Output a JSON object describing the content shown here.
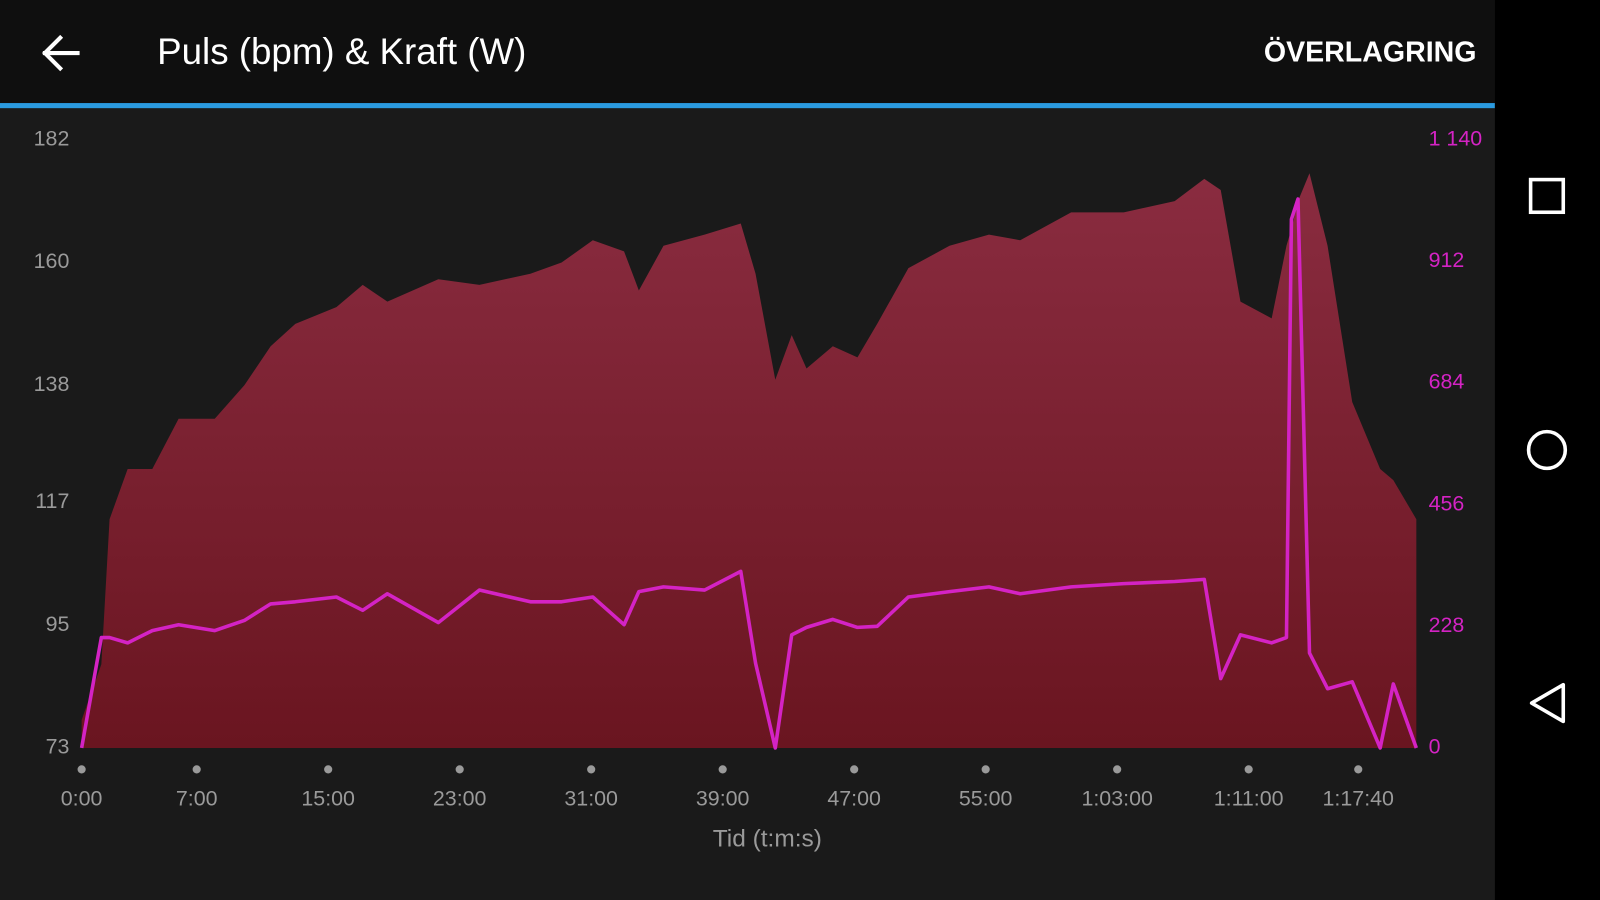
{
  "header": {
    "action": "ÖVERLAGRING"
  },
  "chart_data": {
    "type": "combo",
    "title": "Puls (bpm) & Kraft (W)",
    "x_label": "Tid (t:m:s)",
    "x": [
      0,
      1.2,
      1.7,
      2.8,
      4.3,
      5.9,
      8.1,
      9.9,
      11.5,
      13.0,
      15.5,
      17.1,
      18.6,
      21.7,
      24.2,
      27.3,
      29.2,
      31.1,
      33.0,
      33.9,
      35.4,
      37.9,
      40.1,
      41.0,
      42.2,
      43.2,
      44.1,
      45.7,
      47.2,
      48.4,
      50.3,
      52.8,
      55.2,
      57.1,
      60.2,
      63.4,
      66.5,
      68.3,
      69.3,
      70.5,
      72.4,
      73.3,
      73.6,
      74.0,
      74.7,
      75.8,
      77.3,
      79.0,
      79.8,
      81.2
    ],
    "series": [
      {
        "kind": "area",
        "color": "#8a2c40",
        "color_bottom": "#6a1520",
        "values": [
          78,
          88,
          114,
          123,
          123,
          132,
          132,
          138,
          145,
          149,
          152,
          156,
          153,
          157,
          156,
          158,
          160,
          164,
          162,
          155,
          163,
          165,
          167,
          158,
          139,
          147,
          141,
          145,
          143,
          149,
          159,
          163,
          165,
          164,
          169,
          169,
          171,
          175,
          173,
          153,
          150,
          163,
          166,
          171,
          176,
          163,
          135,
          123,
          121,
          114
        ]
      },
      {
        "kind": "line",
        "axis": "y2",
        "color": "#d423c4",
        "values": [
          0,
          207,
          207,
          197,
          220,
          231,
          220,
          239,
          270,
          274,
          283,
          258,
          289,
          235,
          296,
          274,
          274,
          283,
          231,
          293,
          302,
          296,
          331,
          159,
          0,
          212,
          226,
          241,
          226,
          228,
          283,
          293,
          302,
          289,
          302,
          308,
          312,
          316,
          130,
          212,
          197,
          207,
          991,
          1029,
          178,
          111,
          124,
          0,
          120,
          0
        ]
      }
    ],
    "xlim": [
      0,
      81.2
    ],
    "xticks": [
      {
        "value": 0,
        "label": "0:00"
      },
      {
        "value": 7,
        "label": "7:00"
      },
      {
        "value": 15,
        "label": "15:00"
      },
      {
        "value": 23,
        "label": "23:00"
      },
      {
        "value": 31,
        "label": "31:00"
      },
      {
        "value": 39,
        "label": "39:00"
      },
      {
        "value": 47,
        "label": "47:00"
      },
      {
        "value": 55,
        "label": "55:00"
      },
      {
        "value": 63,
        "label": "1:03:00"
      },
      {
        "value": 71,
        "label": "1:11:00"
      },
      {
        "value": 77.667,
        "label": "1:17:40"
      }
    ],
    "ylim": [
      73,
      182
    ],
    "yticks": [
      73,
      95,
      117,
      138,
      160,
      182
    ],
    "y2lim": [
      0,
      1140
    ],
    "y2ticks": [
      0,
      228,
      456,
      684,
      912,
      {
        "value": 1140,
        "label": "1 140"
      }
    ],
    "y2_color": "#d423c4"
  }
}
